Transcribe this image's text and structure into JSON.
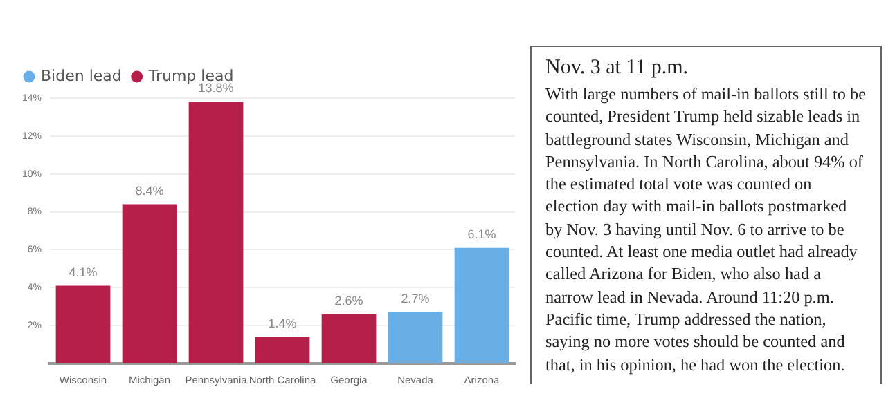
{
  "chart_data": [
    {
      "type": "bar",
      "categories": [
        "Wisconsin",
        "Michigan",
        "Pennsylvania",
        "North Carolina",
        "Georgia",
        "Nevada",
        "Arizona"
      ],
      "series": [
        {
          "name": "Biden lead",
          "color": "#6aaee6",
          "values": [
            null,
            null,
            null,
            null,
            null,
            2.7,
            6.1
          ],
          "value_labels": [
            null,
            null,
            null,
            null,
            null,
            "2.7%",
            "6.1%"
          ]
        },
        {
          "name": "Trump lead",
          "color": "#b51f4a",
          "values": [
            4.1,
            8.4,
            13.8,
            1.4,
            2.6,
            null,
            null
          ],
          "value_labels": [
            "4.1%",
            "8.4%",
            "13.8%",
            "1.4%",
            "2.6%",
            null,
            null
          ]
        }
      ],
      "ylim": [
        0,
        14
      ],
      "yticks": [
        {
          "value": 2,
          "label": "2%"
        },
        {
          "value": 4,
          "label": "4%"
        },
        {
          "value": 6,
          "label": "6%"
        },
        {
          "value": 8,
          "label": "8%"
        },
        {
          "value": 10,
          "label": "10%"
        },
        {
          "value": 12,
          "label": "12%"
        },
        {
          "value": 14,
          "label": "14%"
        }
      ],
      "grid": "y",
      "legend": "top left"
    },
    {
      "type": "other",
      "title": "Nov. 3 at 11 p.m.",
      "annotations": [
        "With large numbers of mail-in ballots still to be counted, President Trump held sizable leads in battleground states Wisconsin, Michigan and Pennsylvania. In North Carolina, about 94% of the estimated total vote was counted on election day with mail-in ballots postmarked by Nov. 3 having until Nov. 6 to arrive to be counted. At least one media outlet had already called Arizona for Biden, who also had a narrow lead in Nevada. Around 11:20 p.m. Pacific time, Trump addressed the nation, saying no more votes should be counted and that, in his opinion, he had won the election."
      ]
    }
  ]
}
